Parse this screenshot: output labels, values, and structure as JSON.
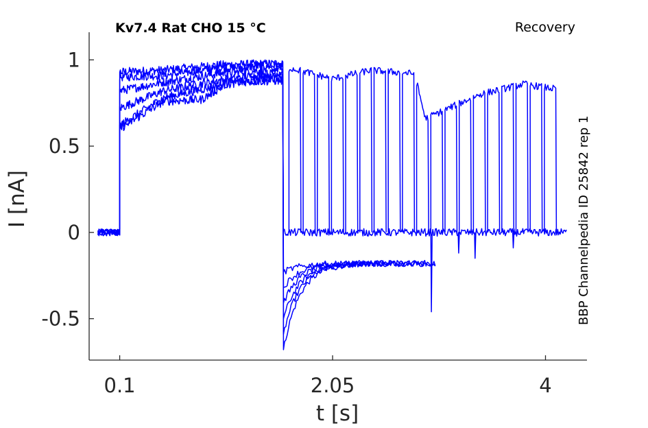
{
  "chart_data": {
    "type": "line",
    "title": "Kv7.4  Rat  CHO  15 °C",
    "subtitle": "Recovery",
    "side_label": "BBP Channelpedia ID 25842 rep 1",
    "xlabel": "t [s]",
    "ylabel": "I [nA]",
    "xlim": [
      -0.18,
      4.38
    ],
    "ylim": [
      -0.74,
      1.16
    ],
    "xticks": [
      0.1,
      2.05,
      4
    ],
    "xtick_labels": [
      "0.1",
      "2.05",
      "4"
    ],
    "yticks": [
      1,
      0.5,
      0,
      -0.5
    ],
    "ytick_labels": [
      "1",
      "0.5",
      "0",
      "-0.5"
    ],
    "grid": false,
    "line_color": "#0000ff",
    "protocol": {
      "baseline_start": -0.1,
      "step_on": 0.1,
      "prepulse_end": 1.6,
      "end": 4.2,
      "sweep_count": 19,
      "first_test_pulse": 1.65,
      "pulse_spacing": 0.13,
      "pulse_duration": 0.11
    },
    "series": [
      {
        "values": [
          [
            0.1,
            0.93
          ],
          [
            0.5,
            0.94
          ],
          [
            1.0,
            0.97
          ],
          [
            1.6,
            0.98
          ]
        ]
      },
      {
        "values": [
          [
            0.1,
            0.9
          ],
          [
            0.5,
            0.91
          ],
          [
            1.0,
            0.95
          ],
          [
            1.6,
            0.97
          ]
        ]
      },
      {
        "values": [
          [
            0.1,
            0.82
          ],
          [
            0.5,
            0.87
          ],
          [
            1.0,
            0.92
          ],
          [
            1.6,
            0.95
          ]
        ]
      },
      {
        "values": [
          [
            0.1,
            0.72
          ],
          [
            0.5,
            0.82
          ],
          [
            1.0,
            0.88
          ],
          [
            1.6,
            0.93
          ]
        ]
      },
      {
        "values": [
          [
            0.1,
            0.62
          ],
          [
            0.5,
            0.78
          ],
          [
            1.0,
            0.85
          ],
          [
            1.6,
            0.91
          ]
        ]
      },
      {
        "values": [
          [
            0.1,
            0.6
          ],
          [
            0.5,
            0.76
          ],
          [
            0.85,
            0.77
          ],
          [
            1.1,
            0.87
          ],
          [
            1.6,
            0.88
          ]
        ]
      }
    ],
    "recovery_envelope": [
      [
        1.68,
        0.95
      ],
      [
        2.05,
        0.89
      ],
      [
        2.4,
        0.94
      ],
      [
        2.8,
        0.92
      ],
      [
        2.9,
        0.66
      ],
      [
        3.4,
        0.8
      ],
      [
        3.8,
        0.86
      ],
      [
        4.1,
        0.83
      ]
    ]
  }
}
